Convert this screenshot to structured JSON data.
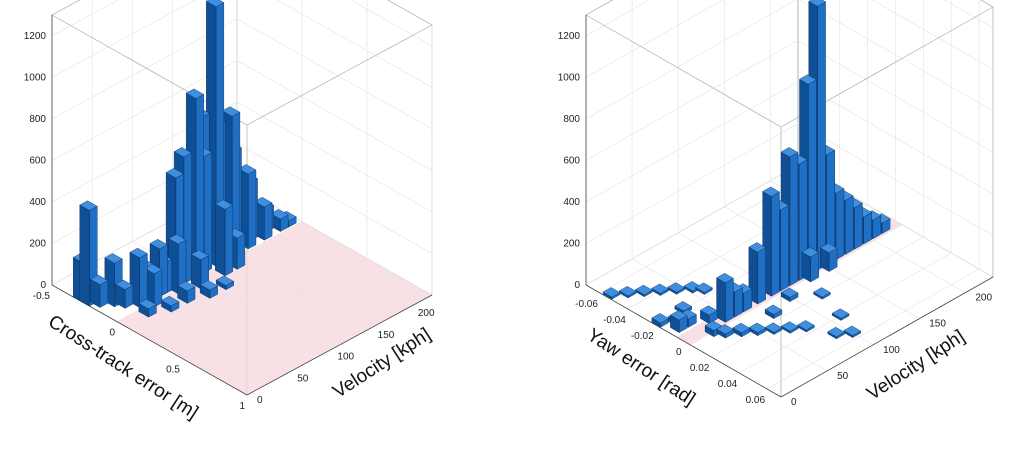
{
  "chart_data": [
    {
      "type": "3d-bar-histogram",
      "xlabel": "Cross-track error [m]",
      "ylabel": "Velocity [kph]",
      "xticks": [
        "-0.5",
        "0",
        "0.5",
        "1"
      ],
      "yticks": [
        "0",
        "50",
        "100",
        "150",
        "200"
      ],
      "zticks": [
        "0",
        "200",
        "400",
        "600",
        "800",
        "1000",
        "1200"
      ],
      "xlim": [
        -0.5,
        1.0
      ],
      "ylim": [
        0,
        230
      ],
      "zlim": [
        0,
        1300
      ],
      "shaded_region": {
        "x": [
          0,
          1.0
        ],
        "y": [
          0,
          230
        ]
      },
      "bars": [
        {
          "x": -0.25,
          "y": 5,
          "z": 460
        },
        {
          "x": -0.3,
          "y": 5,
          "z": 190
        },
        {
          "x": -0.2,
          "y": 10,
          "z": 110
        },
        {
          "x": -0.15,
          "y": 20,
          "z": 210
        },
        {
          "x": -0.1,
          "y": 25,
          "z": 90
        },
        {
          "x": -0.05,
          "y": 35,
          "z": 240
        },
        {
          "x": 0.0,
          "y": 45,
          "z": 160
        },
        {
          "x": -0.1,
          "y": 50,
          "z": 140
        },
        {
          "x": -0.05,
          "y": 60,
          "z": 230
        },
        {
          "x": -0.05,
          "y": 65,
          "z": 150
        },
        {
          "x": 0.0,
          "y": 75,
          "z": 240
        },
        {
          "x": -0.05,
          "y": 80,
          "z": 530
        },
        {
          "x": -0.05,
          "y": 90,
          "z": 610
        },
        {
          "x": -0.1,
          "y": 100,
          "z": 420
        },
        {
          "x": -0.05,
          "y": 105,
          "z": 860
        },
        {
          "x": -0.05,
          "y": 115,
          "z": 560
        },
        {
          "x": -0.1,
          "y": 120,
          "z": 720
        },
        {
          "x": -0.05,
          "y": 130,
          "z": 1250
        },
        {
          "x": -0.1,
          "y": 140,
          "z": 640
        },
        {
          "x": -0.05,
          "y": 150,
          "z": 680
        },
        {
          "x": -0.1,
          "y": 160,
          "z": 470
        },
        {
          "x": -0.05,
          "y": 170,
          "z": 360
        },
        {
          "x": -0.1,
          "y": 180,
          "z": 280
        },
        {
          "x": -0.05,
          "y": 190,
          "z": 160
        },
        {
          "x": -0.1,
          "y": 200,
          "z": 110
        },
        {
          "x": -0.05,
          "y": 210,
          "z": 60
        },
        {
          "x": -0.05,
          "y": 220,
          "z": 30
        },
        {
          "x": 0.05,
          "y": 30,
          "z": 40
        },
        {
          "x": 0.1,
          "y": 50,
          "z": 30
        },
        {
          "x": 0.1,
          "y": 70,
          "z": 60
        },
        {
          "x": 0.15,
          "y": 90,
          "z": 40
        },
        {
          "x": 0.15,
          "y": 110,
          "z": 20
        },
        {
          "x": 0.05,
          "y": 95,
          "z": 140
        },
        {
          "x": 0.05,
          "y": 125,
          "z": 320
        },
        {
          "x": 0.05,
          "y": 140,
          "z": 150
        },
        {
          "x": -0.15,
          "y": 150,
          "z": 180
        },
        {
          "x": -0.15,
          "y": 165,
          "z": 140
        },
        {
          "x": -0.2,
          "y": 175,
          "z": 90
        },
        {
          "x": -0.15,
          "y": 195,
          "z": 60
        }
      ]
    },
    {
      "type": "3d-bar-histogram",
      "xlabel": "Yaw error [rad]",
      "ylabel": "Velocity [kph]",
      "xticks": [
        "-0.06",
        "-0.04",
        "-0.02",
        "0",
        "0.02",
        "0.04",
        "0.06"
      ],
      "yticks": [
        "0",
        "50",
        "100",
        "150",
        "200"
      ],
      "zticks": [
        "0",
        "200",
        "400",
        "600",
        "800",
        "1000",
        "1200"
      ],
      "xlim": [
        -0.07,
        0.07
      ],
      "ylim": [
        0,
        230
      ],
      "zlim": [
        0,
        1300
      ],
      "shaded_region": {
        "x": [
          -0.005,
          0.005
        ],
        "y": [
          0,
          230
        ]
      },
      "bars": [
        {
          "x": 0.0,
          "y": 45,
          "z": 190
        },
        {
          "x": 0.0,
          "y": 55,
          "z": 120
        },
        {
          "x": 0.0,
          "y": 65,
          "z": 90
        },
        {
          "x": 0.0,
          "y": 80,
          "z": 250
        },
        {
          "x": 0.0,
          "y": 95,
          "z": 480
        },
        {
          "x": 0.0,
          "y": 105,
          "z": 390
        },
        {
          "x": 0.0,
          "y": 115,
          "z": 620
        },
        {
          "x": 0.0,
          "y": 125,
          "z": 560
        },
        {
          "x": 0.0,
          "y": 135,
          "z": 920
        },
        {
          "x": 0.0,
          "y": 145,
          "z": 1270
        },
        {
          "x": 0.0,
          "y": 155,
          "z": 530
        },
        {
          "x": 0.0,
          "y": 165,
          "z": 320
        },
        {
          "x": 0.0,
          "y": 175,
          "z": 260
        },
        {
          "x": 0.0,
          "y": 185,
          "z": 200
        },
        {
          "x": 0.0,
          "y": 195,
          "z": 130
        },
        {
          "x": 0.0,
          "y": 205,
          "z": 90
        },
        {
          "x": 0.0,
          "y": 215,
          "z": 50
        },
        {
          "x": -0.005,
          "y": 120,
          "z": 230
        },
        {
          "x": -0.005,
          "y": 140,
          "z": 260
        },
        {
          "x": 0.005,
          "y": 130,
          "z": 120
        },
        {
          "x": 0.005,
          "y": 150,
          "z": 90
        },
        {
          "x": -0.005,
          "y": 60,
          "z": 60
        },
        {
          "x": -0.005,
          "y": 35,
          "z": 40
        },
        {
          "x": 0.005,
          "y": 25,
          "z": 30
        },
        {
          "x": -0.01,
          "y": 10,
          "z": 60
        },
        {
          "x": -0.01,
          "y": 20,
          "z": 40
        },
        {
          "x": -0.015,
          "y": 15,
          "z": 20
        },
        {
          "x": -0.02,
          "y": 5,
          "z": 20
        },
        {
          "x": -0.055,
          "y": 5,
          "z": 10
        },
        {
          "x": -0.05,
          "y": 15,
          "z": 10
        },
        {
          "x": -0.045,
          "y": 25,
          "z": 10
        },
        {
          "x": -0.04,
          "y": 35,
          "z": 10
        },
        {
          "x": -0.035,
          "y": 45,
          "z": 10
        },
        {
          "x": -0.03,
          "y": 55,
          "z": 10
        },
        {
          "x": 0.01,
          "y": 30,
          "z": 20
        },
        {
          "x": 0.015,
          "y": 40,
          "z": 20
        },
        {
          "x": 0.02,
          "y": 50,
          "z": 15
        },
        {
          "x": 0.025,
          "y": 60,
          "z": 10
        },
        {
          "x": 0.03,
          "y": 70,
          "z": 10
        },
        {
          "x": 0.035,
          "y": 80,
          "z": 10
        },
        {
          "x": 0.05,
          "y": 90,
          "z": 10
        },
        {
          "x": 0.055,
          "y": 100,
          "z": 10
        },
        {
          "x": 0.04,
          "y": 110,
          "z": 10
        },
        {
          "x": 0.02,
          "y": 120,
          "z": 10
        },
        {
          "x": 0.01,
          "y": 100,
          "z": 20
        },
        {
          "x": 0.015,
          "y": 75,
          "z": 20
        },
        {
          "x": -0.02,
          "y": 30,
          "z": 15
        },
        {
          "x": -0.025,
          "y": 60,
          "z": 10
        }
      ]
    }
  ],
  "colors": {
    "bar_front": "#1f6fc4",
    "bar_top": "#3f8fe0",
    "bar_side": "#0f4f96",
    "bar_edge": "#0a2a55",
    "shade": "#f6d7dc"
  }
}
